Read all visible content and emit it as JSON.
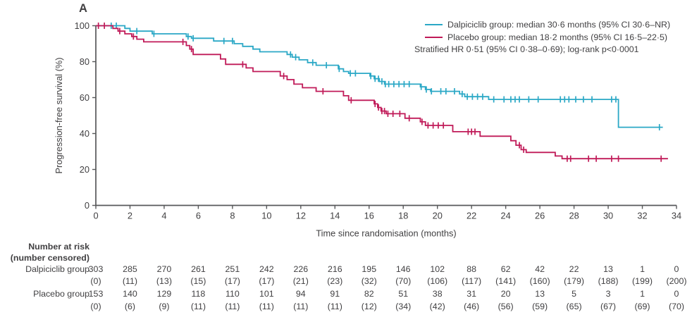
{
  "panel_label": "A",
  "legend": {
    "entries": [
      {
        "label": "Dalpiciclib group: median 30·6 months (95% CI 30·6–NR)",
        "color": "#2BA8C6"
      },
      {
        "label": "Placebo group: median 18·2 months (95% CI 16·5–22·5)",
        "color": "#C01A58"
      }
    ],
    "note": "Stratified HR 0·51 (95% CI 0·38–0·69); log-rank p<0·0001"
  },
  "chart_data": {
    "type": "line",
    "subtype": "kaplan-meier-step",
    "title": "",
    "xlabel": "Time since randomisation (months)",
    "ylabel": "Progression-free survival (%)",
    "xlim": [
      0,
      34
    ],
    "ylim": [
      0,
      100
    ],
    "xticks": [
      0,
      2,
      4,
      6,
      8,
      10,
      12,
      14,
      16,
      18,
      20,
      22,
      24,
      26,
      28,
      30,
      32,
      34
    ],
    "yticks": [
      0,
      20,
      40,
      60,
      80,
      100
    ],
    "grid": false,
    "legend_position": "top-right",
    "axis_color": "#57585A",
    "text_color": "#414042",
    "series": [
      {
        "name": "Dalpiciclib group",
        "color": "#2BA8C6",
        "median_months": "30·6",
        "median_ci": "30·6–NR",
        "points": [
          [
            0,
            100
          ],
          [
            1.7,
            100
          ],
          [
            1.7,
            98.5
          ],
          [
            2.0,
            98.5
          ],
          [
            2.0,
            97
          ],
          [
            3.3,
            97
          ],
          [
            3.3,
            95.5
          ],
          [
            5.3,
            95.5
          ],
          [
            5.3,
            94
          ],
          [
            5.6,
            94
          ],
          [
            5.6,
            93
          ],
          [
            6.9,
            93
          ],
          [
            6.9,
            91.5
          ],
          [
            8.1,
            91.5
          ],
          [
            8.1,
            90
          ],
          [
            8.6,
            90
          ],
          [
            8.6,
            88.5
          ],
          [
            9.2,
            88.5
          ],
          [
            9.2,
            87
          ],
          [
            9.6,
            87
          ],
          [
            9.6,
            85.5
          ],
          [
            11.2,
            85.5
          ],
          [
            11.2,
            84
          ],
          [
            11.5,
            84
          ],
          [
            11.5,
            82.5
          ],
          [
            11.9,
            82.5
          ],
          [
            11.9,
            81
          ],
          [
            12.4,
            81
          ],
          [
            12.4,
            79.5
          ],
          [
            12.9,
            79.5
          ],
          [
            12.9,
            78
          ],
          [
            14.2,
            78
          ],
          [
            14.2,
            76
          ],
          [
            14.5,
            76
          ],
          [
            14.5,
            74.5
          ],
          [
            14.8,
            74.5
          ],
          [
            14.8,
            73.5
          ],
          [
            16.05,
            73.5
          ],
          [
            16.05,
            72
          ],
          [
            16.3,
            72
          ],
          [
            16.3,
            70.5
          ],
          [
            16.6,
            70.5
          ],
          [
            16.6,
            69
          ],
          [
            16.9,
            69
          ],
          [
            16.9,
            67.5
          ],
          [
            19.0,
            67.5
          ],
          [
            19.0,
            66
          ],
          [
            19.3,
            66
          ],
          [
            19.3,
            64.5
          ],
          [
            19.6,
            64.5
          ],
          [
            19.6,
            63.5
          ],
          [
            21.3,
            63.5
          ],
          [
            21.3,
            62
          ],
          [
            21.6,
            62
          ],
          [
            21.6,
            60.5
          ],
          [
            23.0,
            60.5
          ],
          [
            23.0,
            59
          ],
          [
            30.6,
            59
          ],
          [
            30.6,
            43.5
          ],
          [
            33.2,
            43.5
          ]
        ],
        "censors": [
          [
            0.9,
            100
          ],
          [
            1.2,
            100
          ],
          [
            2.4,
            97
          ],
          [
            3.4,
            95.5
          ],
          [
            5.4,
            94
          ],
          [
            5.7,
            93
          ],
          [
            7.5,
            91.5
          ],
          [
            8.0,
            91.5
          ],
          [
            11.4,
            84
          ],
          [
            11.7,
            82.5
          ],
          [
            12.7,
            79.5
          ],
          [
            13.5,
            78
          ],
          [
            14.25,
            76
          ],
          [
            14.9,
            73.5
          ],
          [
            15.2,
            73.5
          ],
          [
            16.1,
            72
          ],
          [
            16.35,
            70.5
          ],
          [
            16.55,
            70.5
          ],
          [
            16.75,
            69
          ],
          [
            16.95,
            67.5
          ],
          [
            17.15,
            67.5
          ],
          [
            17.45,
            67.5
          ],
          [
            17.75,
            67.5
          ],
          [
            18.05,
            67.5
          ],
          [
            18.35,
            67.5
          ],
          [
            19.05,
            66
          ],
          [
            19.35,
            64.5
          ],
          [
            19.65,
            63.5
          ],
          [
            20.2,
            63.5
          ],
          [
            20.5,
            63.5
          ],
          [
            21.0,
            63.5
          ],
          [
            21.45,
            62
          ],
          [
            21.75,
            60.5
          ],
          [
            22.05,
            60.5
          ],
          [
            22.35,
            60.5
          ],
          [
            22.65,
            60.5
          ],
          [
            23.3,
            59
          ],
          [
            23.9,
            59
          ],
          [
            24.3,
            59
          ],
          [
            24.55,
            59
          ],
          [
            24.8,
            59
          ],
          [
            25.35,
            59
          ],
          [
            25.9,
            59
          ],
          [
            27.2,
            59
          ],
          [
            27.45,
            59
          ],
          [
            27.7,
            59
          ],
          [
            28.1,
            59
          ],
          [
            28.55,
            59
          ],
          [
            29.05,
            59
          ],
          [
            30.2,
            59
          ],
          [
            30.45,
            59
          ],
          [
            33.0,
            43.5
          ]
        ]
      },
      {
        "name": "Placebo group",
        "color": "#C01A58",
        "median_months": "18·2",
        "median_ci": "16·5–22·5",
        "points": [
          [
            0,
            100
          ],
          [
            1.0,
            100
          ],
          [
            1.0,
            98.5
          ],
          [
            1.3,
            98.5
          ],
          [
            1.3,
            97
          ],
          [
            1.7,
            97
          ],
          [
            1.7,
            95.5
          ],
          [
            2.1,
            95.5
          ],
          [
            2.1,
            94
          ],
          [
            2.4,
            94
          ],
          [
            2.4,
            92.5
          ],
          [
            2.8,
            92.5
          ],
          [
            2.8,
            91
          ],
          [
            5.3,
            91
          ],
          [
            5.3,
            89
          ],
          [
            5.5,
            89
          ],
          [
            5.5,
            87
          ],
          [
            5.7,
            87
          ],
          [
            5.7,
            84
          ],
          [
            7.3,
            84
          ],
          [
            7.3,
            81.5
          ],
          [
            7.6,
            81.5
          ],
          [
            7.6,
            78.5
          ],
          [
            8.8,
            78.5
          ],
          [
            8.8,
            76.5
          ],
          [
            9.2,
            76.5
          ],
          [
            9.2,
            74.5
          ],
          [
            10.8,
            74.5
          ],
          [
            10.8,
            72
          ],
          [
            11.2,
            72
          ],
          [
            11.2,
            70
          ],
          [
            11.6,
            70
          ],
          [
            11.6,
            67.5
          ],
          [
            12.1,
            67.5
          ],
          [
            12.1,
            65.5
          ],
          [
            12.9,
            65.5
          ],
          [
            12.9,
            63.5
          ],
          [
            14.5,
            63.5
          ],
          [
            14.5,
            61
          ],
          [
            14.8,
            61
          ],
          [
            14.8,
            58.5
          ],
          [
            16.3,
            58.5
          ],
          [
            16.3,
            56.5
          ],
          [
            16.5,
            56.5
          ],
          [
            16.5,
            54.5
          ],
          [
            16.7,
            54.5
          ],
          [
            16.7,
            52.5
          ],
          [
            17.0,
            52.5
          ],
          [
            17.0,
            51
          ],
          [
            18.1,
            51
          ],
          [
            18.1,
            48.5
          ],
          [
            19.0,
            48.5
          ],
          [
            19.0,
            46.5
          ],
          [
            19.3,
            46.5
          ],
          [
            19.3,
            44.5
          ],
          [
            20.9,
            44.5
          ],
          [
            20.9,
            41
          ],
          [
            22.5,
            41
          ],
          [
            22.5,
            38.5
          ],
          [
            24.3,
            38.5
          ],
          [
            24.3,
            36
          ],
          [
            24.6,
            36
          ],
          [
            24.6,
            33.5
          ],
          [
            24.9,
            33.5
          ],
          [
            24.9,
            31
          ],
          [
            25.2,
            31
          ],
          [
            25.2,
            29.5
          ],
          [
            26.9,
            29.5
          ],
          [
            26.9,
            27.5
          ],
          [
            27.3,
            27.5
          ],
          [
            27.3,
            26
          ],
          [
            33.5,
            26
          ]
        ],
        "censors": [
          [
            0.15,
            100
          ],
          [
            0.5,
            100
          ],
          [
            1.4,
            97
          ],
          [
            2.2,
            94
          ],
          [
            5.1,
            91
          ],
          [
            5.6,
            87
          ],
          [
            8.6,
            78.5
          ],
          [
            11.0,
            72
          ],
          [
            13.3,
            63.5
          ],
          [
            14.95,
            58.5
          ],
          [
            16.35,
            56.5
          ],
          [
            16.55,
            54.5
          ],
          [
            16.75,
            52.5
          ],
          [
            16.9,
            52.5
          ],
          [
            17.1,
            51
          ],
          [
            17.4,
            51
          ],
          [
            17.8,
            51
          ],
          [
            18.35,
            48.5
          ],
          [
            19.1,
            46.5
          ],
          [
            19.45,
            44.5
          ],
          [
            19.75,
            44.5
          ],
          [
            20.05,
            44.5
          ],
          [
            20.35,
            44.5
          ],
          [
            21.8,
            41
          ],
          [
            22.0,
            41
          ],
          [
            22.2,
            41
          ],
          [
            24.8,
            33.5
          ],
          [
            25.05,
            31
          ],
          [
            27.6,
            26
          ],
          [
            27.8,
            26
          ],
          [
            28.85,
            26
          ],
          [
            29.3,
            26
          ],
          [
            30.2,
            26
          ],
          [
            30.6,
            26
          ],
          [
            33.1,
            26
          ]
        ]
      }
    ]
  },
  "risk_table": {
    "header_line1": "Number at risk",
    "header_line2": "(number censored)",
    "columns": [
      0,
      2,
      4,
      6,
      8,
      10,
      12,
      14,
      16,
      18,
      20,
      22,
      24,
      26,
      28,
      30,
      32,
      34
    ],
    "rows": [
      {
        "label": "Dalpiciclib group",
        "counts": [
          303,
          285,
          270,
          261,
          251,
          242,
          226,
          216,
          195,
          146,
          102,
          88,
          62,
          42,
          22,
          13,
          1,
          0
        ],
        "censored": [
          0,
          11,
          13,
          15,
          17,
          17,
          21,
          23,
          32,
          70,
          106,
          117,
          141,
          160,
          179,
          188,
          199,
          200
        ]
      },
      {
        "label": "Placebo group",
        "counts": [
          153,
          140,
          129,
          118,
          110,
          101,
          94,
          91,
          82,
          51,
          38,
          31,
          20,
          13,
          5,
          3,
          1,
          0
        ],
        "censored": [
          0,
          6,
          9,
          11,
          11,
          11,
          11,
          11,
          12,
          34,
          42,
          46,
          56,
          59,
          65,
          67,
          69,
          70
        ]
      }
    ]
  }
}
